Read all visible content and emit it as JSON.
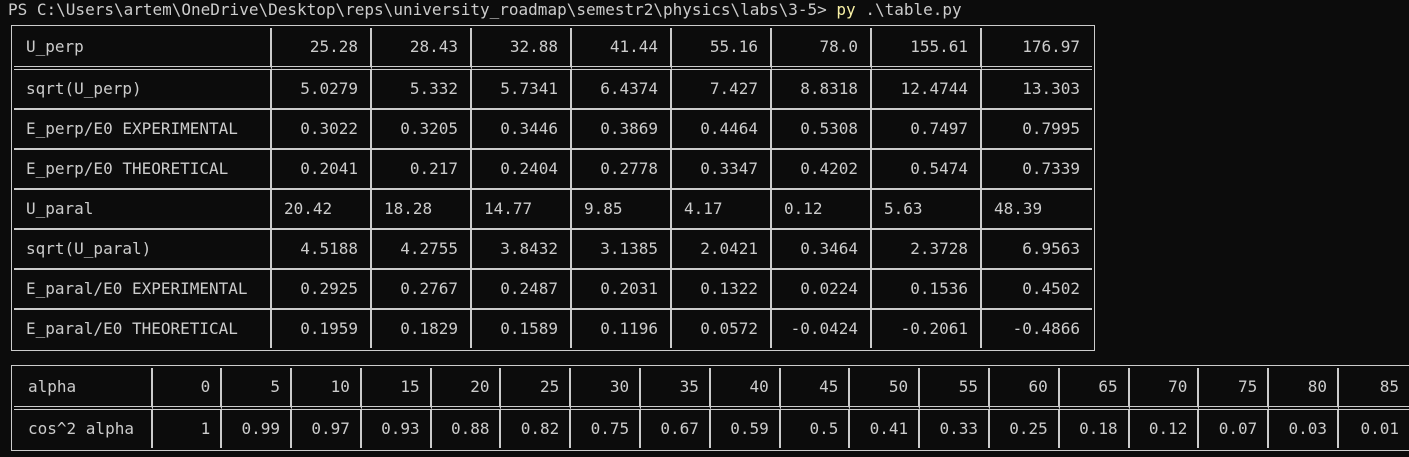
{
  "terminal": {
    "prompt": "PS C:\\Users\\artem\\OneDrive\\Desktop\\reps\\university_roadmap\\semestr2\\physics\\labs\\3-5> ",
    "command": "py",
    "argument": " .\\table.py"
  },
  "table1": {
    "rows": [
      {
        "label": "U_perp",
        "values": [
          "25.28",
          "28.43",
          "32.88",
          "41.44",
          "55.16",
          "78.0",
          "155.61",
          "176.97"
        ]
      },
      {
        "label": "sqrt(U_perp)",
        "values": [
          "5.0279",
          "5.332",
          "5.7341",
          "6.4374",
          "7.427",
          "8.8318",
          "12.4744",
          "13.303"
        ]
      },
      {
        "label": "E_perp/E0 EXPERIMENTAL",
        "values": [
          "0.3022",
          "0.3205",
          "0.3446",
          "0.3869",
          "0.4464",
          "0.5308",
          "0.7497",
          "0.7995"
        ]
      },
      {
        "label": "E_perp/E0 THEORETICAL",
        "values": [
          "0.2041",
          "0.217",
          "0.2404",
          "0.2778",
          "0.3347",
          "0.4202",
          "0.5474",
          "0.7339"
        ]
      },
      {
        "label": "U_paral",
        "values": [
          "20.42",
          "18.28",
          "14.77",
          "9.85",
          "4.17",
          "0.12",
          "5.63",
          "48.39"
        ]
      },
      {
        "label": "sqrt(U_paral)",
        "values": [
          "4.5188",
          "4.2755",
          "3.8432",
          "3.1385",
          "2.0421",
          "0.3464",
          "2.3728",
          "6.9563"
        ]
      },
      {
        "label": "E_paral/E0 EXPERIMENTAL",
        "values": [
          "0.2925",
          "0.2767",
          "0.2487",
          "0.2031",
          "0.1322",
          "0.0224",
          "0.1536",
          "0.4502"
        ]
      },
      {
        "label": "E_paral/E0 THEORETICAL",
        "values": [
          "0.1959",
          "0.1829",
          "0.1589",
          "0.1196",
          "0.0572",
          "-0.0424",
          "-0.2061",
          "-0.4866"
        ]
      }
    ]
  },
  "table2": {
    "rows": [
      {
        "label": "alpha",
        "values": [
          "0",
          "5",
          "10",
          "15",
          "20",
          "25",
          "30",
          "35",
          "40",
          "45",
          "50",
          "55",
          "60",
          "65",
          "70",
          "75",
          "80",
          "85"
        ]
      },
      {
        "label": "cos^2 alpha",
        "values": [
          "1",
          "0.99",
          "0.97",
          "0.93",
          "0.88",
          "0.82",
          "0.75",
          "0.67",
          "0.59",
          "0.5",
          "0.41",
          "0.33",
          "0.25",
          "0.18",
          "0.12",
          "0.07",
          "0.03",
          "0.01"
        ]
      }
    ]
  },
  "colors": {
    "background": "#0c0c0c",
    "text": "#cccccc",
    "command": "#f9f1a5"
  }
}
